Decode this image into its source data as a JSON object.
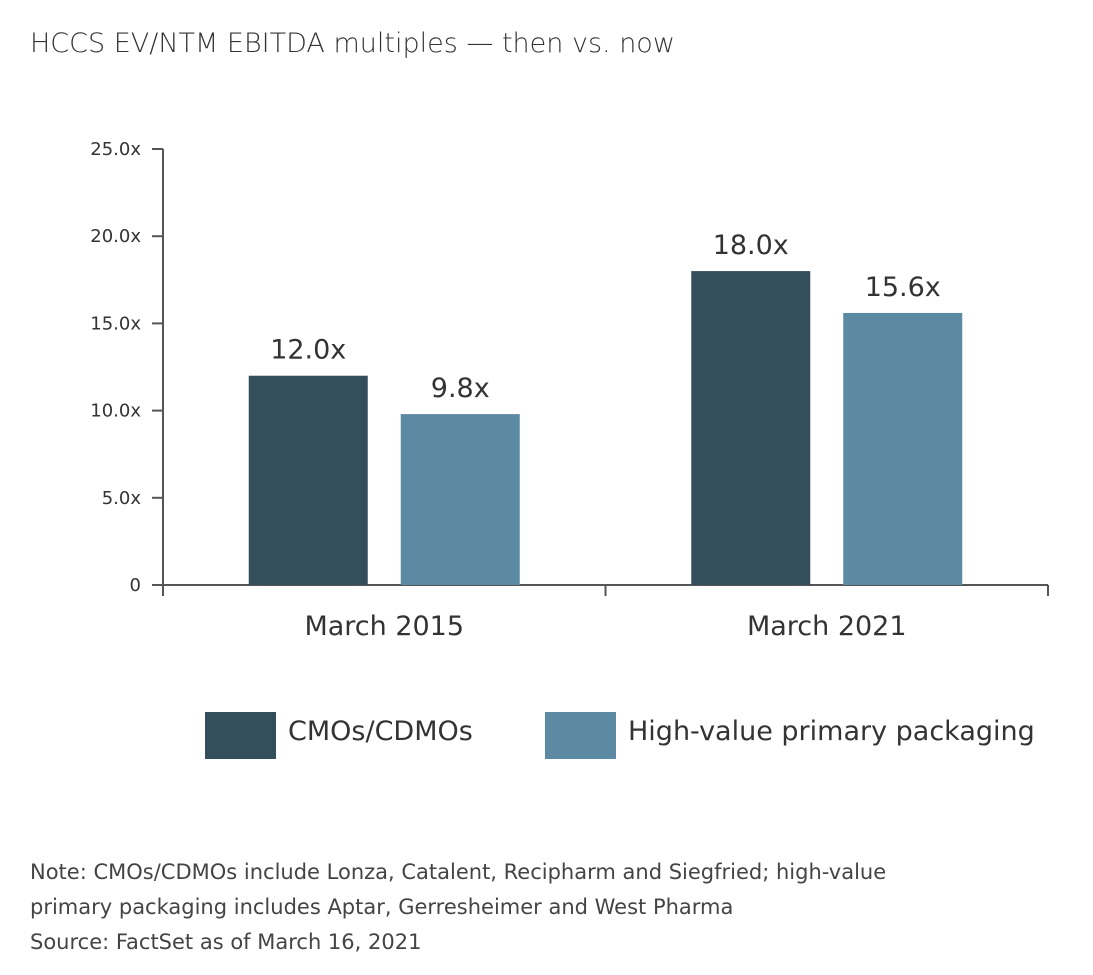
{
  "chart_data": {
    "type": "bar",
    "title": "HCCS EV/NTM EBITDA multiples — then vs. now",
    "categories": [
      "March 2015",
      "March 2021"
    ],
    "series": [
      {
        "name": "CMOs/CDMOs",
        "values": [
          12.0,
          18.0
        ],
        "labels": [
          "12.0x",
          "18.0x"
        ],
        "color": "#344f5b"
      },
      {
        "name": "High-value primary packaging",
        "values": [
          9.8,
          15.6
        ],
        "labels": [
          "9.8x",
          "15.6x"
        ],
        "color": "#5d8aa3"
      }
    ],
    "ylim": [
      0,
      25
    ],
    "yticks": [
      0,
      5,
      10,
      15,
      20,
      25
    ],
    "ytick_labels": [
      "0",
      "5.0x",
      "10.0x",
      "15.0x",
      "20.0x",
      "25.0x"
    ],
    "xlabel": "",
    "ylabel": "",
    "grid": false,
    "legend_position": "bottom-right"
  },
  "notes": [
    "Note: CMOs/CDMOs include Lonza, Catalent, Recipharm and Siegfried; high-value",
    "primary packaging includes Aptar, Gerresheimer and West Pharma",
    "Source: FactSet as of March 16, 2021"
  ]
}
